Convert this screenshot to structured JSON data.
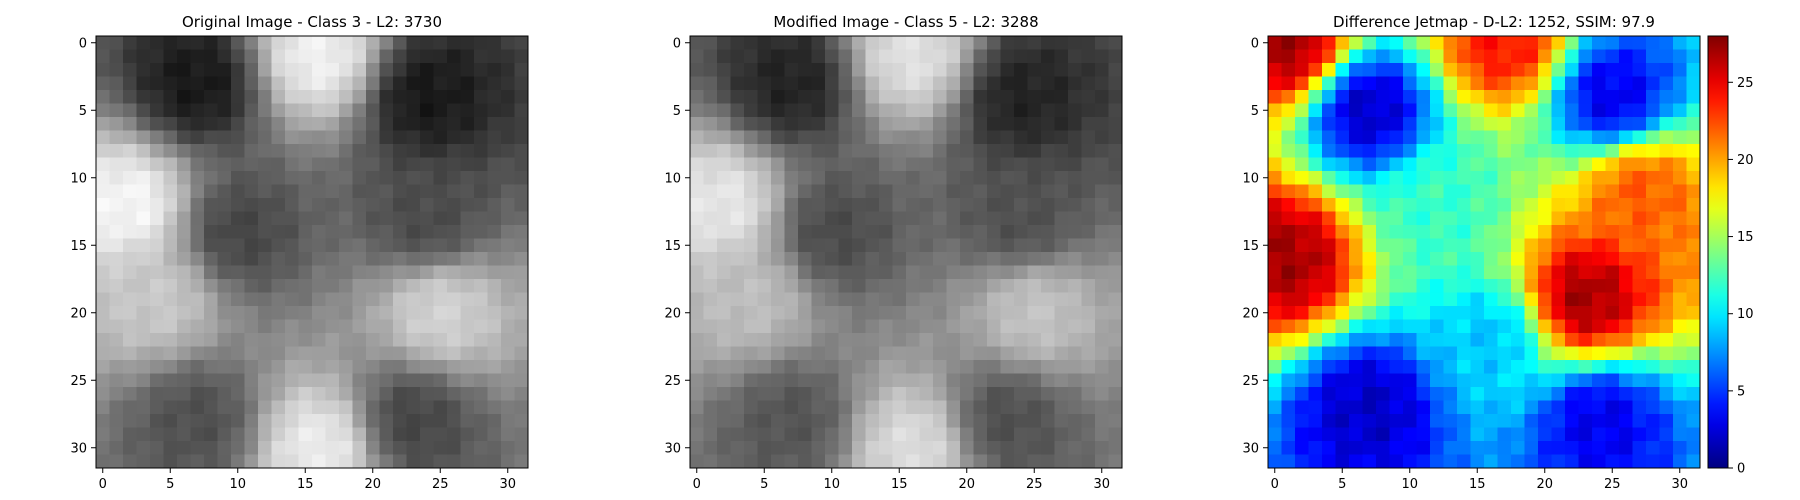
{
  "chart_data": [
    {
      "type": "heatmap",
      "title": "Original Image - Class 3 - L2: 3730",
      "title_color": "#000000",
      "colormap": "gray",
      "grid": false,
      "xlim": [
        -0.5,
        31.5
      ],
      "ylim": [
        31.5,
        -0.5
      ],
      "x_ticks": [
        0,
        5,
        10,
        15,
        20,
        25,
        30
      ],
      "y_ticks": [
        0,
        5,
        10,
        15,
        20,
        25,
        30
      ],
      "value_range": [
        0,
        255
      ],
      "key_values": [
        {
          "x": 7,
          "y": 3,
          "value": 25
        },
        {
          "x": 16,
          "y": 1,
          "value": 240
        },
        {
          "x": 24,
          "y": 4,
          "value": 25
        },
        {
          "x": 2,
          "y": 12,
          "value": 245
        },
        {
          "x": 10,
          "y": 14,
          "value": 70
        },
        {
          "x": 24,
          "y": 13,
          "value": 75
        },
        {
          "x": 4,
          "y": 19,
          "value": 200
        },
        {
          "x": 25,
          "y": 20,
          "value": 210
        },
        {
          "x": 7,
          "y": 28,
          "value": 80
        },
        {
          "x": 16,
          "y": 30,
          "value": 235
        },
        {
          "x": 23,
          "y": 28,
          "value": 70
        }
      ]
    },
    {
      "type": "heatmap",
      "title": "Modified Image - Class 5 - L2: 3288",
      "title_color": "#ff0000",
      "colormap": "gray",
      "grid": false,
      "xlim": [
        -0.5,
        31.5
      ],
      "ylim": [
        31.5,
        -0.5
      ],
      "x_ticks": [
        0,
        5,
        10,
        15,
        20,
        25,
        30
      ],
      "y_ticks": [
        0,
        5,
        10,
        15,
        20,
        25,
        30
      ],
      "value_range": [
        0,
        255
      ],
      "key_values": [
        {
          "x": 7,
          "y": 3,
          "value": 35
        },
        {
          "x": 16,
          "y": 1,
          "value": 225
        },
        {
          "x": 24,
          "y": 4,
          "value": 35
        },
        {
          "x": 2,
          "y": 12,
          "value": 230
        },
        {
          "x": 10,
          "y": 14,
          "value": 75
        },
        {
          "x": 24,
          "y": 13,
          "value": 80
        },
        {
          "x": 4,
          "y": 19,
          "value": 190
        },
        {
          "x": 25,
          "y": 20,
          "value": 195
        },
        {
          "x": 7,
          "y": 28,
          "value": 85
        },
        {
          "x": 16,
          "y": 30,
          "value": 220
        },
        {
          "x": 23,
          "y": 28,
          "value": 80
        }
      ]
    },
    {
      "type": "heatmap",
      "title": "Difference Jetmap - D-L2: 1252, SSIM: 97.9",
      "title_color": "#000000",
      "colormap": "jet",
      "grid": false,
      "xlim": [
        -0.5,
        31.5
      ],
      "ylim": [
        31.5,
        -0.5
      ],
      "x_ticks": [
        0,
        5,
        10,
        15,
        20,
        25,
        30
      ],
      "y_ticks": [
        0,
        5,
        10,
        15,
        20,
        25,
        30
      ],
      "colorbar": {
        "min": 0,
        "max": 28,
        "ticks": [
          0,
          5,
          10,
          15,
          20,
          25
        ],
        "location": "right"
      },
      "key_values": [
        {
          "x": 1,
          "y": 0,
          "value": 27
        },
        {
          "x": 17,
          "y": 0,
          "value": 24
        },
        {
          "x": 7,
          "y": 5,
          "value": 2
        },
        {
          "x": 25,
          "y": 4,
          "value": 3
        },
        {
          "x": 1,
          "y": 16,
          "value": 27
        },
        {
          "x": 27,
          "y": 11,
          "value": 22
        },
        {
          "x": 23,
          "y": 19,
          "value": 27
        },
        {
          "x": 7,
          "y": 27,
          "value": 2
        },
        {
          "x": 24,
          "y": 28,
          "value": 3
        },
        {
          "x": 12,
          "y": 12,
          "value": 12
        },
        {
          "x": 16,
          "y": 22,
          "value": 9
        }
      ]
    }
  ]
}
